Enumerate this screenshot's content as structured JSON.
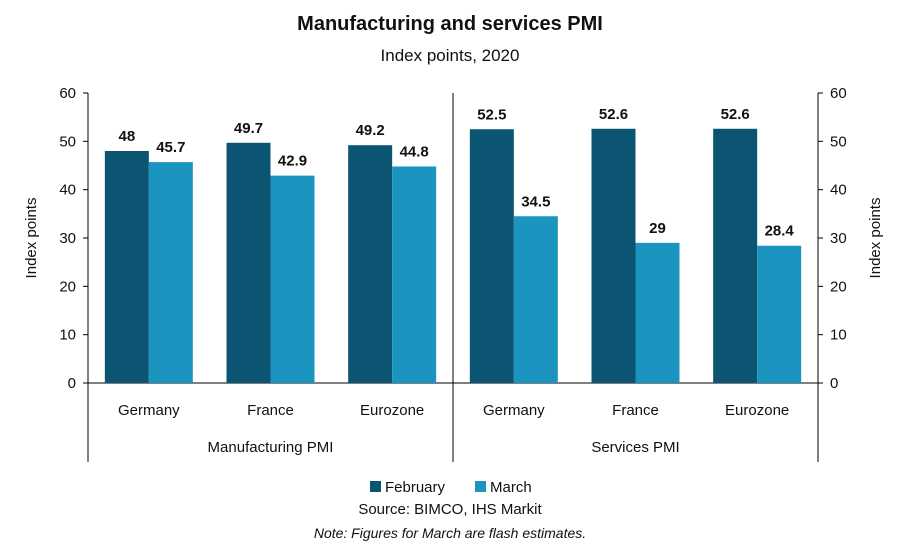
{
  "chart_data": {
    "type": "bar",
    "title": "Manufacturing and services PMI",
    "subtitle": "Index points, 2020",
    "ylabel_left": "Index points",
    "ylabel_right": "Index points",
    "ylim": [
      0,
      60
    ],
    "yticks": [
      "0",
      "10",
      "20",
      "30",
      "40",
      "50",
      "60"
    ],
    "groups": [
      {
        "name": "Manufacturing PMI",
        "categories": [
          "Germany",
          "France",
          "Eurozone"
        ]
      },
      {
        "name": "Services PMI",
        "categories": [
          "Germany",
          "France",
          "Eurozone"
        ]
      }
    ],
    "series": [
      {
        "name": "February",
        "color": "#0b5472",
        "values": [
          48,
          49.7,
          49.2,
          52.5,
          52.6,
          52.6
        ]
      },
      {
        "name": "March",
        "color": "#1b95bf",
        "values": [
          45.7,
          42.9,
          44.8,
          34.5,
          29,
          28.4
        ]
      }
    ],
    "grid": false,
    "legend_position": "bottom",
    "source": "Source: BIMCO, IHS Markit",
    "note": "Note: Figures for March are flash estimates."
  }
}
